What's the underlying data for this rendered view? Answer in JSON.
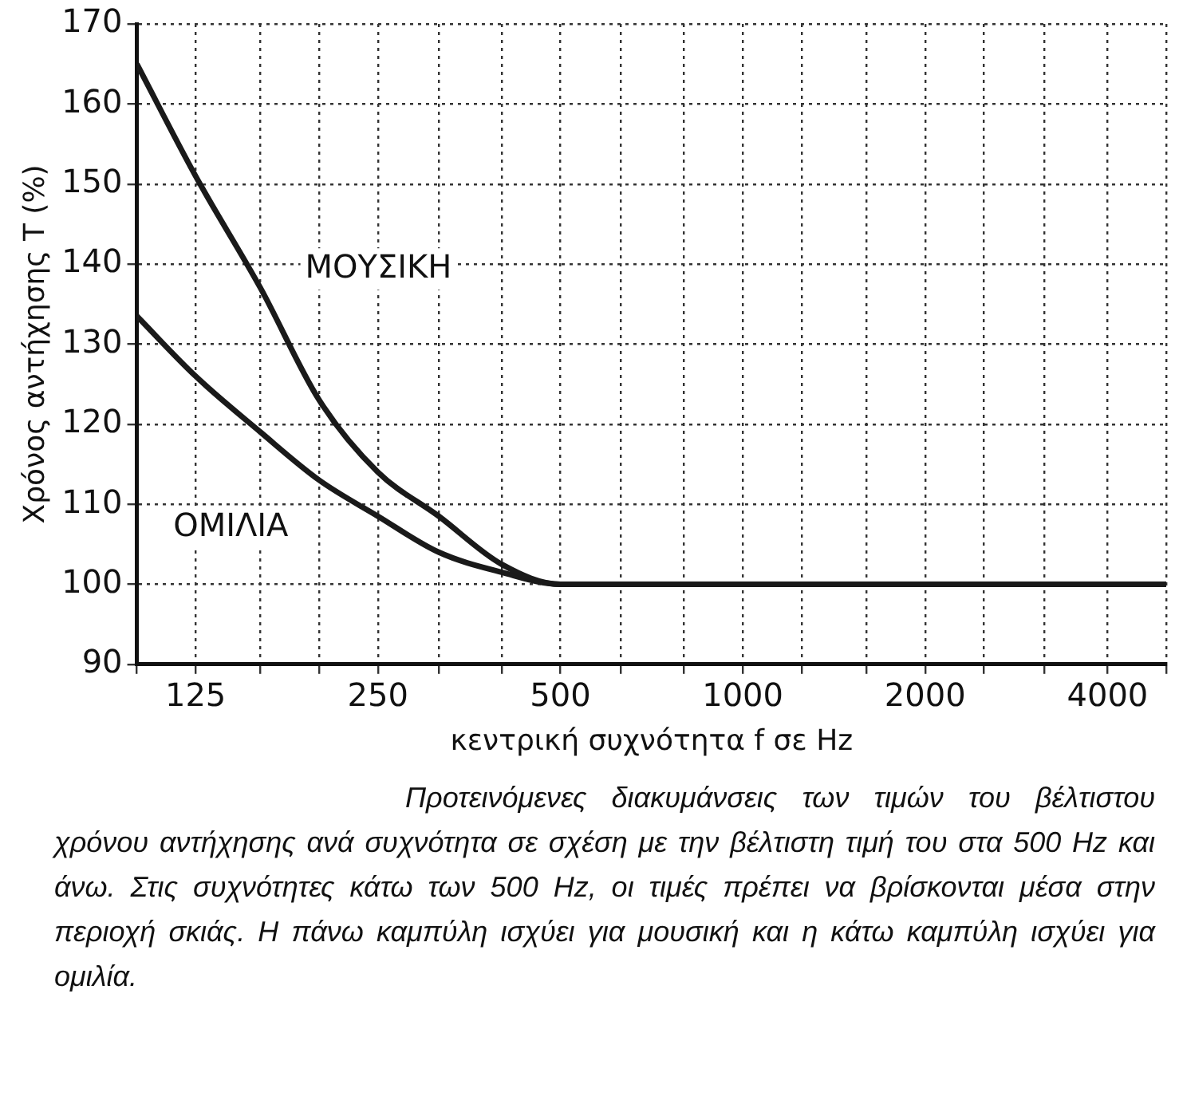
{
  "chart_data": {
    "type": "line",
    "xlabel": "κεντρική συχνότητα f σε Hz",
    "ylabel": "Χρόνος αντήχησης T (%)",
    "log": "x",
    "grid": true,
    "legend": false,
    "marker": "none",
    "line_style": "solid",
    "xlim": [
      100,
      5000
    ],
    "ylim": [
      90,
      170
    ],
    "xticks": [
      {
        "value": 100,
        "label": null
      },
      125,
      {
        "value": 160,
        "label": null
      },
      {
        "value": 200,
        "label": null
      },
      250,
      {
        "value": 315,
        "label": null
      },
      {
        "value": 400,
        "label": null
      },
      500,
      {
        "value": 630,
        "label": null
      },
      {
        "value": 800,
        "label": null
      },
      1000,
      {
        "value": 1250,
        "label": null
      },
      {
        "value": 1600,
        "label": null
      },
      2000,
      {
        "value": 2500,
        "label": null
      },
      {
        "value": 3150,
        "label": null
      },
      4000,
      {
        "value": 5000,
        "label": null
      }
    ],
    "yticks": [
      90,
      100,
      110,
      120,
      130,
      140,
      150,
      160,
      170
    ],
    "series": [
      {
        "name": "ΜΟΥΣΙΚΗ",
        "color": "#1a1a1a",
        "x": [
          100,
          125,
          160,
          200,
          250,
          315,
          400,
          500,
          5000
        ],
        "values": [
          165,
          151,
          137,
          123,
          114,
          108.5,
          102.5,
          100,
          100
        ]
      },
      {
        "name": "ΟΜΙΛΙΑ",
        "color": "#1a1a1a",
        "x": [
          100,
          125,
          160,
          200,
          250,
          315,
          400,
          500,
          5000
        ],
        "values": [
          133.5,
          126,
          119,
          113,
          108.5,
          104,
          101.5,
          100,
          100
        ]
      }
    ],
    "annotations": [
      "Προτεινόμενες διακυμάνσεις των τιμών του βέλτιστου χρόνου αντήχησης ανά συχνότητα σε σχέση με την βέλτιστη τιμή του στα 500 Hz και άνω. Στις συχνότητες κάτω των 500 Hz, οι τιμές πρέπει να βρίσκονται μέσα στην περιοχή σκιάς. Η πάνω καμπύλη ισχύει για μουσική και η κάτω καμπύλη ισχύει για ομιλία."
    ]
  }
}
